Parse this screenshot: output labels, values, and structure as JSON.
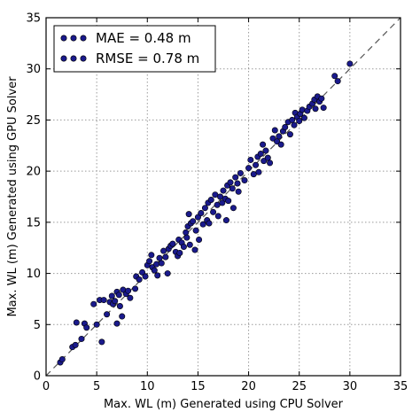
{
  "chart_data": {
    "type": "scatter",
    "xlabel": "Max. WL (m) Generated using CPU Solver",
    "ylabel": "Max. WL (m) Generated using GPU Solver",
    "xlim": [
      0,
      35
    ],
    "ylim": [
      0,
      35
    ],
    "xticks": [
      "0",
      "5",
      "10",
      "15",
      "20",
      "25",
      "30",
      "35"
    ],
    "yticks": [
      "0",
      "5",
      "10",
      "15",
      "20",
      "25",
      "30",
      "35"
    ],
    "grid": true,
    "legend_position": "top-left",
    "legend": [
      {
        "label": "MAE = 0.48 m"
      },
      {
        "label": "RMSE = 0.78 m"
      }
    ],
    "reference_line": {
      "style": "dashed",
      "from": [
        0,
        0
      ],
      "to": [
        35,
        35
      ]
    },
    "marker_color": "#1a1a8c",
    "points": [
      [
        1.4,
        1.3
      ],
      [
        1.6,
        1.6
      ],
      [
        2.6,
        2.8
      ],
      [
        2.9,
        3.0
      ],
      [
        3.0,
        5.2
      ],
      [
        3.5,
        3.6
      ],
      [
        3.8,
        5.1
      ],
      [
        4.0,
        4.7
      ],
      [
        4.7,
        7.0
      ],
      [
        5.0,
        5.0
      ],
      [
        5.3,
        7.4
      ],
      [
        5.5,
        3.3
      ],
      [
        5.7,
        7.4
      ],
      [
        6.0,
        6.0
      ],
      [
        6.3,
        7.2
      ],
      [
        6.5,
        7.8
      ],
      [
        6.6,
        7.0
      ],
      [
        6.8,
        7.3
      ],
      [
        7.0,
        5.1
      ],
      [
        7.0,
        8.2
      ],
      [
        7.2,
        7.9
      ],
      [
        7.3,
        6.8
      ],
      [
        7.5,
        5.8
      ],
      [
        7.6,
        8.4
      ],
      [
        7.9,
        8.0
      ],
      [
        8.1,
        8.3
      ],
      [
        8.3,
        7.6
      ],
      [
        8.8,
        8.5
      ],
      [
        8.9,
        9.7
      ],
      [
        9.2,
        9.4
      ],
      [
        9.5,
        10.1
      ],
      [
        9.8,
        9.7
      ],
      [
        10.0,
        10.8
      ],
      [
        10.2,
        11.2
      ],
      [
        10.4,
        11.8
      ],
      [
        10.5,
        10.6
      ],
      [
        10.7,
        10.3
      ],
      [
        10.9,
        10.9
      ],
      [
        11.0,
        9.8
      ],
      [
        11.2,
        11.5
      ],
      [
        11.4,
        11.0
      ],
      [
        11.6,
        12.2
      ],
      [
        11.8,
        11.6
      ],
      [
        12.0,
        10.0
      ],
      [
        12.1,
        12.4
      ],
      [
        12.3,
        12.7
      ],
      [
        12.5,
        12.9
      ],
      [
        12.8,
        12.1
      ],
      [
        13.0,
        11.7
      ],
      [
        13.1,
        13.3
      ],
      [
        13.2,
        12.0
      ],
      [
        13.4,
        13.0
      ],
      [
        13.6,
        12.6
      ],
      [
        13.8,
        14.0
      ],
      [
        13.9,
        13.5
      ],
      [
        14.0,
        14.6
      ],
      [
        14.1,
        15.8
      ],
      [
        14.2,
        12.8
      ],
      [
        14.3,
        14.9
      ],
      [
        14.5,
        15.1
      ],
      [
        14.7,
        12.3
      ],
      [
        14.8,
        14.2
      ],
      [
        15.0,
        15.5
      ],
      [
        15.1,
        13.3
      ],
      [
        15.3,
        15.9
      ],
      [
        15.5,
        14.8
      ],
      [
        15.7,
        16.4
      ],
      [
        15.9,
        15.2
      ],
      [
        16.0,
        16.9
      ],
      [
        16.1,
        14.9
      ],
      [
        16.3,
        17.2
      ],
      [
        16.5,
        16.0
      ],
      [
        16.7,
        17.7
      ],
      [
        16.9,
        16.7
      ],
      [
        17.0,
        15.6
      ],
      [
        17.2,
        17.5
      ],
      [
        17.4,
        16.9
      ],
      [
        17.5,
        18.1
      ],
      [
        17.7,
        17.3
      ],
      [
        17.8,
        15.2
      ],
      [
        17.9,
        18.6
      ],
      [
        18.0,
        17.1
      ],
      [
        18.2,
        18.9
      ],
      [
        18.4,
        18.3
      ],
      [
        18.5,
        16.4
      ],
      [
        18.7,
        19.4
      ],
      [
        18.9,
        18.8
      ],
      [
        19.0,
        18.0
      ],
      [
        19.2,
        19.8
      ],
      [
        19.6,
        19.1
      ],
      [
        20.0,
        20.3
      ],
      [
        20.2,
        21.1
      ],
      [
        20.5,
        19.7
      ],
      [
        20.7,
        20.6
      ],
      [
        20.9,
        21.4
      ],
      [
        21.0,
        19.9
      ],
      [
        21.2,
        21.7
      ],
      [
        21.4,
        22.6
      ],
      [
        21.5,
        21.0
      ],
      [
        21.7,
        22.0
      ],
      [
        21.9,
        21.3
      ],
      [
        22.1,
        20.8
      ],
      [
        22.4,
        23.2
      ],
      [
        22.6,
        24.0
      ],
      [
        22.8,
        22.9
      ],
      [
        23.0,
        23.4
      ],
      [
        23.2,
        22.6
      ],
      [
        23.4,
        23.9
      ],
      [
        23.6,
        24.3
      ],
      [
        23.9,
        24.8
      ],
      [
        24.1,
        23.6
      ],
      [
        24.3,
        25.0
      ],
      [
        24.5,
        24.5
      ],
      [
        24.6,
        25.7
      ],
      [
        24.8,
        25.3
      ],
      [
        25.0,
        24.9
      ],
      [
        25.1,
        25.6
      ],
      [
        25.3,
        26.0
      ],
      [
        25.5,
        25.2
      ],
      [
        25.8,
        25.9
      ],
      [
        26.0,
        26.3
      ],
      [
        26.3,
        26.6
      ],
      [
        26.5,
        27.0
      ],
      [
        26.6,
        26.1
      ],
      [
        26.8,
        27.3
      ],
      [
        27.0,
        26.8
      ],
      [
        27.2,
        27.1
      ],
      [
        27.4,
        26.2
      ],
      [
        28.5,
        29.3
      ],
      [
        28.8,
        28.8
      ],
      [
        30.0,
        30.5
      ]
    ]
  }
}
